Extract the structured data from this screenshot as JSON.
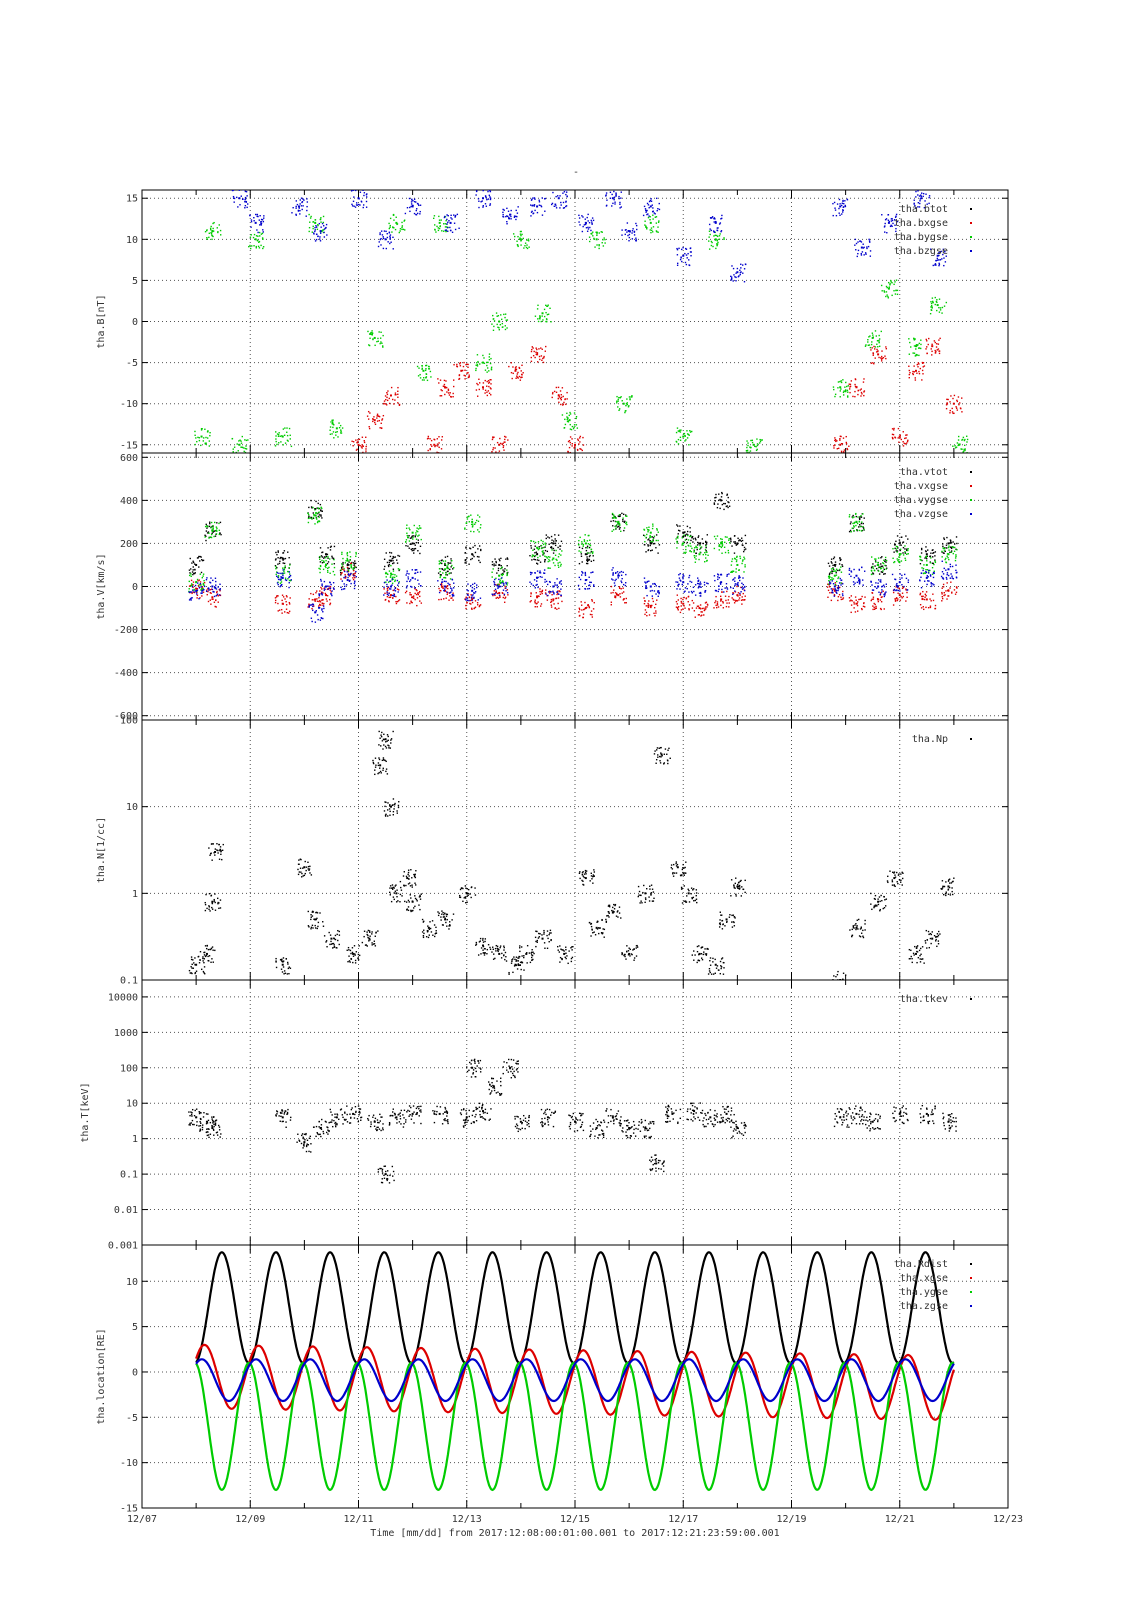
{
  "figure": {
    "title": "-",
    "time_axis_caption": "Time [mm/dd]  from 2017:12:08:00:01:00.001  to  2017:12:21:23:59:00.001",
    "x_tick_labels": [
      "12/07",
      "12/09",
      "12/11",
      "12/13",
      "12/15",
      "12/17",
      "12/19",
      "12/21",
      "12/23"
    ]
  },
  "chart_data": [
    {
      "type": "scatter",
      "ylabel": "tha.B[nT]",
      "ylim": [
        -16,
        16
      ],
      "yticks": [
        15,
        10,
        5,
        0,
        -5,
        -10,
        -15
      ],
      "xlim": [
        0,
        16
      ],
      "legend_position": "top-right",
      "series": [
        {
          "name": "tha.btot",
          "color": "#000000",
          "x": [],
          "y": []
        },
        {
          "name": "tha.bxgse",
          "color": "#dd0000",
          "x": [
            4.0,
            4.3,
            4.6,
            5.4,
            5.6,
            5.9,
            6.3,
            6.6,
            6.9,
            7.3,
            7.7,
            8.0,
            12.9,
            13.2,
            13.6,
            14.0,
            14.3,
            14.6,
            15.0
          ],
          "y": [
            -15,
            -12,
            -9,
            -15,
            -8,
            -6,
            -8,
            -15,
            -6,
            -4,
            -9,
            -15,
            -15,
            -8,
            -4,
            -14,
            -6,
            -3,
            -10
          ]
        },
        {
          "name": "tha.bygse",
          "color": "#00cc00",
          "x": [
            1.1,
            1.3,
            1.8,
            2.1,
            2.6,
            3.2,
            3.6,
            4.3,
            4.7,
            5.2,
            5.5,
            6.3,
            6.6,
            7.0,
            7.4,
            7.9,
            8.4,
            8.9,
            9.4,
            10.0,
            10.6,
            11.3,
            12.9,
            13.5,
            13.8,
            14.3,
            14.7,
            15.1
          ],
          "y": [
            -14,
            11,
            -15,
            10,
            -14,
            12,
            -13,
            -2,
            12,
            -6,
            12,
            -5,
            0,
            10,
            1,
            -12,
            10,
            -10,
            12,
            -14,
            10,
            -15,
            -8,
            -2,
            4,
            -3,
            2,
            -15
          ]
        },
        {
          "name": "tha.bzgse",
          "color": "#0000cc",
          "x": [
            1.8,
            2.1,
            2.9,
            3.3,
            4.0,
            4.5,
            5.0,
            5.7,
            6.3,
            6.8,
            7.3,
            7.7,
            8.2,
            8.7,
            9.0,
            9.4,
            10.0,
            10.6,
            11.0,
            12.9,
            13.3,
            13.8,
            14.4,
            14.7
          ],
          "y": [
            15,
            12,
            14,
            11,
            15,
            10,
            14,
            12,
            15,
            13,
            14,
            15,
            12,
            15,
            11,
            14,
            8,
            12,
            6,
            14,
            9,
            12,
            15,
            8
          ]
        }
      ]
    },
    {
      "type": "scatter",
      "ylabel": "tha.V[km/s]",
      "ylim": [
        -620,
        620
      ],
      "yticks": [
        600,
        400,
        200,
        0,
        -200,
        -400,
        -600
      ],
      "xlim": [
        0,
        16
      ],
      "legend_position": "top-right",
      "series": [
        {
          "name": "tha.vtot",
          "color": "#000000",
          "x": [
            1.0,
            1.3,
            2.6,
            3.2,
            3.4,
            3.8,
            4.6,
            5.0,
            5.6,
            6.1,
            6.6,
            7.3,
            7.6,
            8.2,
            8.8,
            9.4,
            10.0,
            10.3,
            10.7,
            11.0,
            12.8,
            13.2,
            13.6,
            14.0,
            14.5,
            14.9
          ],
          "y": [
            100,
            260,
            130,
            360,
            150,
            100,
            120,
            200,
            100,
            150,
            100,
            150,
            200,
            150,
            300,
            200,
            250,
            200,
            400,
            200,
            100,
            300,
            100,
            200,
            150,
            200
          ]
        },
        {
          "name": "tha.vxgse",
          "color": "#dd0000",
          "x": [
            1.0,
            1.3,
            2.6,
            3.2,
            3.4,
            3.8,
            4.6,
            5.0,
            5.6,
            6.1,
            6.6,
            7.3,
            7.6,
            8.2,
            8.8,
            9.4,
            10.0,
            10.3,
            10.7,
            11.0,
            12.8,
            13.2,
            13.6,
            14.0,
            14.5,
            14.9
          ],
          "y": [
            -10,
            -50,
            -80,
            -60,
            -40,
            70,
            -40,
            -50,
            -20,
            -60,
            -30,
            -50,
            -60,
            -100,
            -40,
            -90,
            -80,
            -100,
            -60,
            -40,
            -20,
            -80,
            -60,
            -40,
            -60,
            -20
          ]
        },
        {
          "name": "tha.vygse",
          "color": "#00cc00",
          "x": [
            1.0,
            1.3,
            2.6,
            3.2,
            3.4,
            3.8,
            4.6,
            5.0,
            5.6,
            6.1,
            6.6,
            7.3,
            7.6,
            8.2,
            8.8,
            9.4,
            10.0,
            10.3,
            10.7,
            11.0,
            12.8,
            13.2,
            13.6,
            14.0,
            14.5,
            14.9
          ],
          "y": [
            20,
            260,
            60,
            330,
            100,
            120,
            60,
            250,
            80,
            300,
            50,
            180,
            130,
            200,
            300,
            250,
            200,
            150,
            200,
            100,
            50,
            300,
            100,
            150,
            100,
            150
          ]
        },
        {
          "name": "tha.vzgse",
          "color": "#0000cc",
          "x": [
            1.0,
            1.3,
            2.6,
            3.2,
            3.4,
            3.8,
            4.6,
            5.0,
            5.6,
            6.1,
            6.6,
            7.3,
            7.6,
            8.2,
            8.8,
            9.4,
            10.0,
            10.3,
            10.7,
            11.0,
            12.8,
            13.2,
            13.6,
            14.0,
            14.5,
            14.9
          ],
          "y": [
            -20,
            0,
            40,
            -120,
            0,
            30,
            0,
            40,
            0,
            -20,
            0,
            40,
            0,
            30,
            50,
            0,
            20,
            0,
            20,
            10,
            0,
            50,
            0,
            20,
            40,
            80
          ]
        }
      ]
    },
    {
      "type": "scatter",
      "ylabel": "tha.N[1/cc]",
      "yscale": "log",
      "ylim": [
        0.1,
        100
      ],
      "yticks": [
        100,
        10,
        1,
        0.1
      ],
      "xlim": [
        0,
        16
      ],
      "legend_position": "top-right",
      "series": [
        {
          "name": "tha.Np",
          "color": "#000000",
          "x": [
            1.0,
            1.2,
            1.3,
            1.35,
            2.6,
            3.0,
            3.2,
            3.5,
            3.9,
            4.2,
            4.4,
            4.5,
            4.6,
            4.7,
            4.9,
            5.0,
            5.3,
            5.6,
            6.0,
            6.3,
            6.6,
            6.9,
            7.1,
            7.4,
            7.8,
            8.2,
            8.4,
            8.7,
            9.0,
            9.3,
            9.6,
            9.9,
            10.1,
            10.3,
            10.6,
            10.8,
            11.0,
            12.9,
            13.2,
            13.6,
            13.9,
            14.3,
            14.6,
            14.9
          ],
          "y": [
            0.15,
            0.2,
            0.8,
            3,
            0.15,
            2.0,
            0.5,
            0.3,
            0.2,
            0.3,
            30,
            60,
            10,
            1.0,
            1.5,
            0.8,
            0.4,
            0.5,
            1.0,
            0.25,
            0.2,
            0.15,
            0.2,
            0.3,
            0.2,
            1.5,
            0.4,
            0.6,
            0.2,
            1.0,
            40,
            2.0,
            1.0,
            0.2,
            0.15,
            0.5,
            1.2,
            0.1,
            0.4,
            0.8,
            1.5,
            0.2,
            0.3,
            1.2
          ]
        }
      ]
    },
    {
      "type": "scatter",
      "ylabel": "tha.T[keV]",
      "yscale": "log",
      "ylim": [
        0.001,
        30000
      ],
      "yticks": [
        10000,
        1000,
        100,
        10,
        1,
        0.1,
        0.01,
        0.001
      ],
      "ytick_labels": [
        "10000",
        "1000",
        "100",
        "10",
        "1",
        "0.1",
        "0.01",
        "0.001"
      ],
      "xlim": [
        0,
        16
      ],
      "legend_position": "top-right",
      "series": [
        {
          "name": "tha.tkev",
          "color": "#000000",
          "x": [
            1.0,
            1.2,
            1.3,
            2.6,
            3.0,
            3.3,
            3.6,
            3.9,
            4.3,
            4.5,
            4.7,
            5.0,
            5.5,
            6.0,
            6.1,
            6.3,
            6.5,
            6.8,
            7.0,
            7.5,
            8.0,
            8.4,
            8.7,
            9.0,
            9.3,
            9.5,
            9.8,
            10.2,
            10.5,
            10.8,
            11.0,
            12.9,
            13.2,
            13.5,
            14.0,
            14.5,
            14.9
          ],
          "y": [
            4,
            3,
            2,
            4,
            0.8,
            2,
            4,
            5,
            3,
            0.1,
            4,
            5,
            5,
            4,
            100,
            6,
            30,
            100,
            3,
            4,
            3,
            2,
            4,
            2,
            2,
            0.2,
            5,
            6,
            4,
            5,
            2,
            4,
            5,
            3,
            5,
            5,
            3
          ]
        }
      ]
    },
    {
      "type": "line",
      "ylabel": "tha.location[RE]",
      "ylim": [
        -15,
        14
      ],
      "yticks": [
        10,
        5,
        0,
        -5,
        -10,
        -15
      ],
      "xlim": [
        0,
        16
      ],
      "legend_position": "top-right",
      "series": [
        {
          "name": "tha.Rdist",
          "color": "#000000",
          "orbit": {
            "t0": 1.0,
            "t_end": 15.0,
            "period": 1.0,
            "min": 1.0,
            "max": 13.2,
            "apogee_x": 2.0
          }
        },
        {
          "name": "tha.xgse",
          "color": "#dd0000",
          "orbit": {
            "t0": 1.0,
            "t_end": 15.0,
            "period": 1.0,
            "min": -4.0,
            "max": 3.0,
            "min_end": -5.3,
            "max_end": 1.8
          }
        },
        {
          "name": "tha.ygse",
          "color": "#00cc00",
          "orbit": {
            "t0": 1.0,
            "t_end": 15.0,
            "period": 1.0,
            "min": -13.0,
            "max": 1.0,
            "apogee_x": 2.0
          }
        },
        {
          "name": "tha.zgse",
          "color": "#0000cc",
          "orbit": {
            "t0": 1.0,
            "t_end": 15.0,
            "period": 1.0,
            "min": -3.2,
            "max": 1.4
          }
        }
      ]
    }
  ]
}
